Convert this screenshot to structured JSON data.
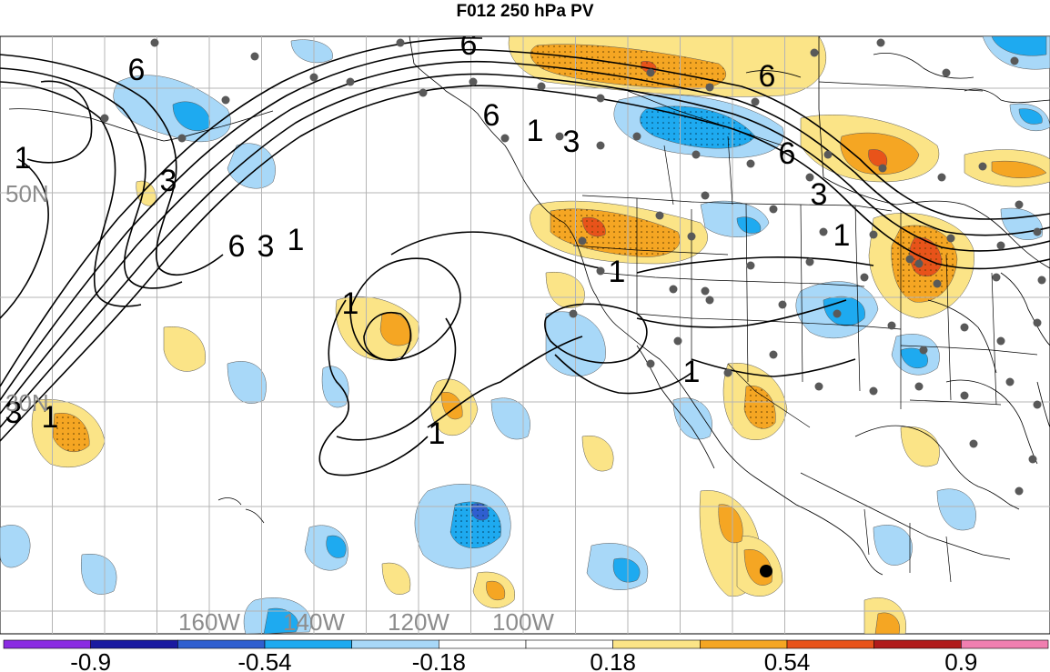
{
  "title": "F012 250 hPa PV",
  "colors": {
    "ocean": "#ffffff",
    "grid": "#b4b4b4",
    "gridLabel": "#8c8c8c",
    "contour": "#000000",
    "station": "#595959",
    "dot_marker": "#000000"
  },
  "latLabels": [
    {
      "text": "50N",
      "lat": 50
    },
    {
      "text": "30N",
      "lat": 30
    }
  ],
  "lonLabels": [
    {
      "text": "160W",
      "lon": -160
    },
    {
      "text": "140W",
      "lon": -140
    },
    {
      "text": "120W",
      "lon": -120
    },
    {
      "text": "100W",
      "lon": -100
    }
  ],
  "contourLabelValues": [
    "1",
    "3",
    "6"
  ],
  "colorbar": {
    "segments": [
      "#8a2be2",
      "#1a1aa0",
      "#2f5fd0",
      "#1eaaf0",
      "#a8d8f8",
      "#ffffff",
      "#ffffff",
      "#fbe487",
      "#f5a623",
      "#e8531a",
      "#b01b1b",
      "#f07fb0"
    ],
    "labels": [
      "-0.9",
      "-0.54",
      "-0.18",
      "0.18",
      "0.54",
      "0.9"
    ]
  }
}
